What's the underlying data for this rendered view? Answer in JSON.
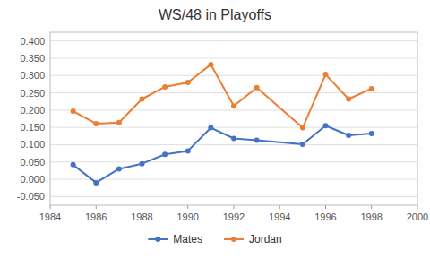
{
  "chart_data": {
    "type": "line",
    "title": "WS/48 in Playoffs",
    "x": [
      1985,
      1986,
      1987,
      1988,
      1989,
      1990,
      1991,
      1992,
      1993,
      1995,
      1996,
      1997,
      1998
    ],
    "series": [
      {
        "name": "Mates",
        "color": "#4472C4",
        "marker": "circle",
        "values": [
          0.042,
          -0.01,
          0.03,
          0.045,
          0.072,
          0.082,
          0.149,
          0.118,
          0.113,
          0.101,
          0.155,
          0.127,
          0.132
        ]
      },
      {
        "name": "Jordan",
        "color": "#ED7D31",
        "marker": "circle",
        "values": [
          0.197,
          0.161,
          0.164,
          0.232,
          0.267,
          0.28,
          0.332,
          0.212,
          0.265,
          0.149,
          0.303,
          0.232,
          0.262
        ]
      }
    ],
    "xlim": [
      1984,
      2000
    ],
    "xticks": [
      1984,
      1986,
      1988,
      1990,
      1992,
      1994,
      1996,
      1998,
      2000
    ],
    "ylim": [
      -0.075,
      0.425
    ],
    "yticks": [
      {
        "value": -0.05,
        "label": "-0.050"
      },
      {
        "value": 0,
        "label": "0.000"
      },
      {
        "value": 0.05,
        "label": "0.050"
      },
      {
        "value": 0.1,
        "label": "0.100"
      },
      {
        "value": 0.15,
        "label": "0.150"
      },
      {
        "value": 0.2,
        "label": "0.200"
      },
      {
        "value": 0.25,
        "label": "0.250"
      },
      {
        "value": 0.3,
        "label": "0.300"
      },
      {
        "value": 0.35,
        "label": "0.350"
      },
      {
        "value": 0.4,
        "label": "0.400"
      }
    ],
    "grid": true,
    "legend": "bottom"
  }
}
